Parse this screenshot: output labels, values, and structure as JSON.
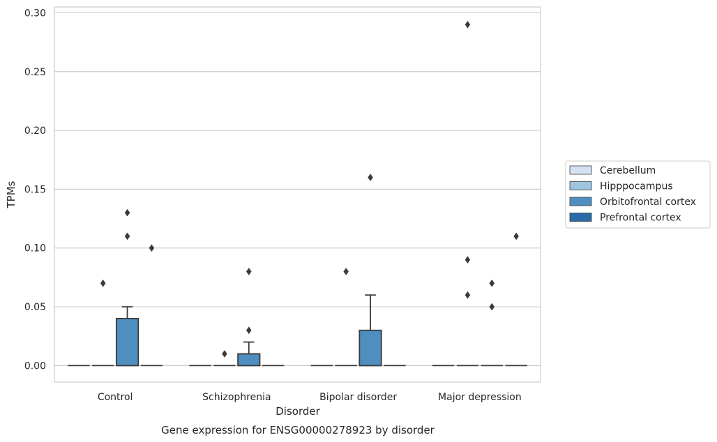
{
  "chart_data": {
    "type": "box",
    "title": "",
    "caption": "Gene expression for ENSG00000278923 by disorder",
    "xlabel": "Disorder",
    "ylabel": "TPMs",
    "ylim": [
      -0.014,
      0.305
    ],
    "yticks": [
      0.0,
      0.05,
      0.1,
      0.15,
      0.2,
      0.25,
      0.3
    ],
    "ytick_labels": [
      "0.00",
      "0.05",
      "0.10",
      "0.15",
      "0.20",
      "0.25",
      "0.30"
    ],
    "grid": "horizontal",
    "legend_position": "right",
    "categories": [
      "Control",
      "Schizophrenia",
      "Bipolar disorder",
      "Major depression"
    ],
    "series": [
      {
        "name": "Cerebellum",
        "color": "#d4e3f2",
        "boxes": [
          {
            "q1": 0,
            "median": 0,
            "q3": 0,
            "whisker_low": 0,
            "whisker_high": 0,
            "outliers": []
          },
          {
            "q1": 0,
            "median": 0,
            "q3": 0,
            "whisker_low": 0,
            "whisker_high": 0,
            "outliers": []
          },
          {
            "q1": 0,
            "median": 0,
            "q3": 0,
            "whisker_low": 0,
            "whisker_high": 0,
            "outliers": []
          },
          {
            "q1": 0,
            "median": 0,
            "q3": 0,
            "whisker_low": 0,
            "whisker_high": 0,
            "outliers": []
          }
        ]
      },
      {
        "name": "Hipppocampus",
        "color": "#9dc5e0",
        "boxes": [
          {
            "q1": 0,
            "median": 0,
            "q3": 0,
            "whisker_low": 0,
            "whisker_high": 0,
            "outliers": [
              0.07
            ]
          },
          {
            "q1": 0,
            "median": 0,
            "q3": 0,
            "whisker_low": 0,
            "whisker_high": 0,
            "outliers": [
              0.01
            ]
          },
          {
            "q1": 0,
            "median": 0,
            "q3": 0,
            "whisker_low": 0,
            "whisker_high": 0,
            "outliers": [
              0.08
            ]
          },
          {
            "q1": 0,
            "median": 0,
            "q3": 0,
            "whisker_low": 0,
            "whisker_high": 0,
            "outliers": [
              0.06,
              0.09,
              0.29
            ]
          }
        ]
      },
      {
        "name": "Orbitofrontal cortex",
        "color": "#4f8fbf",
        "boxes": [
          {
            "q1": 0,
            "median": 0,
            "q3": 0.04,
            "whisker_low": 0,
            "whisker_high": 0.05,
            "outliers": [
              0.11,
              0.13
            ]
          },
          {
            "q1": 0,
            "median": 0,
            "q3": 0.01,
            "whisker_low": 0,
            "whisker_high": 0.02,
            "outliers": [
              0.03,
              0.08
            ]
          },
          {
            "q1": 0,
            "median": 0,
            "q3": 0.03,
            "whisker_low": 0,
            "whisker_high": 0.06,
            "outliers": [
              0.16
            ]
          },
          {
            "q1": 0,
            "median": 0,
            "q3": 0,
            "whisker_low": 0,
            "whisker_high": 0,
            "outliers": [
              0.05,
              0.07
            ]
          }
        ]
      },
      {
        "name": "Prefrontal cortex",
        "color": "#2a6aa8",
        "boxes": [
          {
            "q1": 0,
            "median": 0,
            "q3": 0,
            "whisker_low": 0,
            "whisker_high": 0,
            "outliers": [
              0.1
            ]
          },
          {
            "q1": 0,
            "median": 0,
            "q3": 0,
            "whisker_low": 0,
            "whisker_high": 0,
            "outliers": []
          },
          {
            "q1": 0,
            "median": 0,
            "q3": 0,
            "whisker_low": 0,
            "whisker_high": 0,
            "outliers": []
          },
          {
            "q1": 0,
            "median": 0,
            "q3": 0,
            "whisker_low": 0,
            "whisker_high": 0,
            "outliers": [
              0.11
            ]
          }
        ]
      }
    ]
  }
}
